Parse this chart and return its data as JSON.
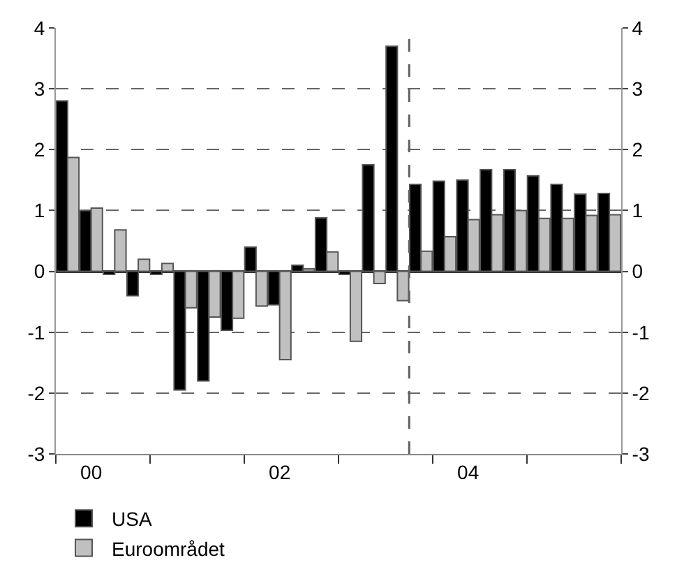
{
  "chart_data": {
    "type": "bar",
    "categories": [
      null,
      "00",
      null,
      null,
      null,
      null,
      null,
      null,
      null,
      "02",
      null,
      null,
      null,
      null,
      null,
      null,
      null,
      "04",
      null,
      null,
      null,
      null,
      null,
      null
    ],
    "series": [
      {
        "name": "USA",
        "color": "#000000",
        "values": [
          2.8,
          1.0,
          -0.05,
          -0.4,
          -0.05,
          -1.95,
          -1.8,
          -0.97,
          0.4,
          -0.55,
          0.1,
          0.88,
          -0.05,
          1.75,
          3.7,
          1.43,
          1.48,
          1.5,
          1.67,
          1.67,
          1.57,
          1.43,
          1.27,
          1.28
        ]
      },
      {
        "name": "Euroområdet",
        "color": "#c0c0c0",
        "values": [
          1.87,
          1.04,
          0.68,
          0.2,
          0.13,
          -0.6,
          -0.75,
          -0.77,
          -0.57,
          -1.45,
          0.04,
          0.32,
          -1.15,
          -0.2,
          -0.48,
          0.33,
          0.57,
          0.85,
          0.93,
          1.0,
          0.87,
          0.87,
          0.92,
          0.93
        ]
      }
    ],
    "ylim": [
      -3,
      4
    ],
    "yticks": [
      -3,
      -2,
      -1,
      0,
      1,
      2,
      3,
      4
    ],
    "y2lim": [
      -3,
      4
    ],
    "y2ticks": [
      -3,
      -2,
      -1,
      0,
      1,
      2,
      3,
      4
    ],
    "grid": "y",
    "legend": "bottom left"
  }
}
